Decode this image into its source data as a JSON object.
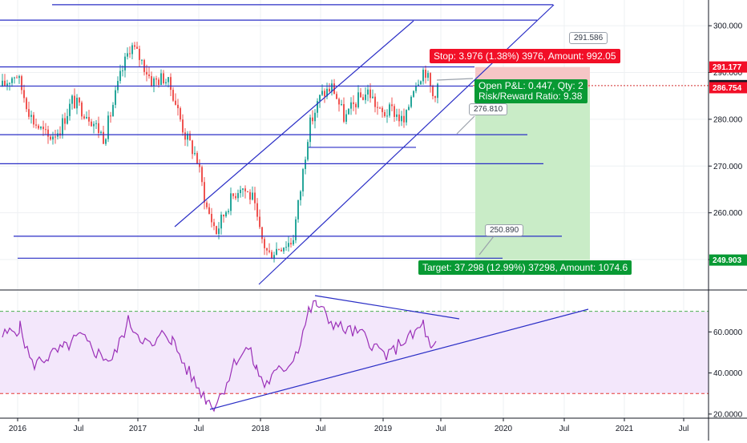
{
  "colors": {
    "up": "#26a69a",
    "down": "#ef5350",
    "trendline": "#2a2ec6",
    "rsi_line": "#9b30b8",
    "rsi_band_fill": "#f3e7fb",
    "profit_zone": "#c9ecc7",
    "loss_zone": "#f6c6c6",
    "stop_label": "#f20f27",
    "target_label": "#089a34",
    "overbought_line": "#4caf50",
    "oversold_line": "#e53935",
    "last_price_line": "#d32f2f"
  },
  "price_axis": {
    "ticks": [
      "300.000",
      "290.000",
      "280.000",
      "270.000",
      "260.000",
      "250.000"
    ],
    "ylim": [
      243.5,
      305.5
    ]
  },
  "rsi_axis": {
    "ticks": [
      "60.0000",
      "40.0000",
      "20.0000"
    ],
    "ylim": [
      18,
      80
    ]
  },
  "price_tags": [
    {
      "value": "291.177",
      "color": "#f20f27",
      "price": 291.177
    },
    {
      "value": "287.201",
      "color": "#131722",
      "price": 287.201
    },
    {
      "value": "286.754",
      "color": "#f20f27",
      "price": 286.754
    },
    {
      "value": "249.903",
      "color": "#089a34",
      "price": 249.903
    }
  ],
  "time_axis": {
    "labels": [
      "2016",
      "Jul",
      "2017",
      "Jul",
      "2018",
      "Jul",
      "2019",
      "Jul",
      "2020",
      "Jul",
      "2021",
      "Jul"
    ]
  },
  "position": {
    "stop_text": "Stop: 3.976 (1.38%) 3976, Amount: 992.05",
    "open_text": "Open P&L: 0.447, Qty: 2",
    "rr_text": "Risk/Reward Ratio: 9.38",
    "target_text": "Target: 37.298 (12.99%) 37298, Amount: 1074.6"
  },
  "callouts": [
    {
      "text": "291.586"
    },
    {
      "text": "276.810"
    },
    {
      "text": "250.890"
    }
  ],
  "levels": {
    "horizontal_prices": [
      304.5,
      301.2,
      291.2,
      287.1,
      276.7,
      274.0,
      270.5,
      255.0,
      250.3
    ]
  }
}
